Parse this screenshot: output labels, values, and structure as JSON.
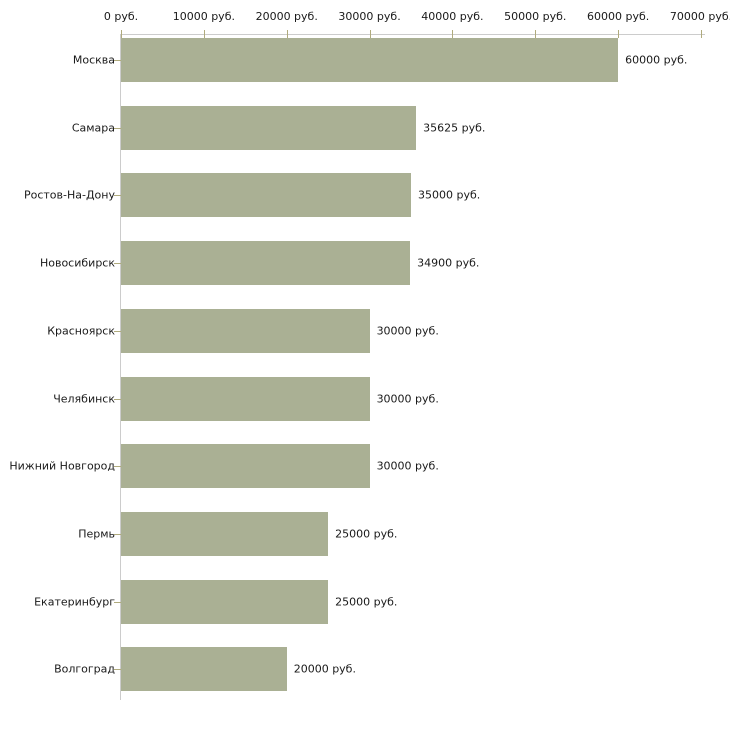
{
  "chart_data": {
    "type": "bar",
    "orientation": "horizontal",
    "title": "",
    "categories": [
      "Москва",
      "Самара",
      "Ростов-На-Дону",
      "Новосибирск",
      "Красноярск",
      "Челябинск",
      "Нижний Новгород",
      "Пермь",
      "Екатеринбург",
      "Волгоград"
    ],
    "values": [
      60000,
      35625,
      35000,
      34900,
      30000,
      30000,
      30000,
      25000,
      25000,
      20000
    ],
    "value_labels": [
      "60000 руб.",
      "35625 руб.",
      "35000 руб.",
      "34900 руб.",
      "30000 руб.",
      "30000 руб.",
      "30000 руб.",
      "25000 руб.",
      "25000 руб.",
      "20000 руб."
    ],
    "unit": "руб.",
    "x_axis": {
      "position": "top",
      "min": 0,
      "max": 70000,
      "tick_values": [
        0,
        10000,
        20000,
        30000,
        40000,
        50000,
        60000,
        70000
      ],
      "tick_labels": [
        "0 руб.",
        "10000 руб.",
        "20000 руб.",
        "30000 руб.",
        "40000 руб.",
        "50000 руб.",
        "60000 руб.",
        "70000 руб."
      ]
    },
    "grid": false,
    "legend": false,
    "colors": {
      "bar_fill": "#aab094",
      "axis_line": "#cccccc",
      "tick_mark": "#b0ab7d",
      "text": "#1a1a1a",
      "background": "#ffffff"
    }
  }
}
